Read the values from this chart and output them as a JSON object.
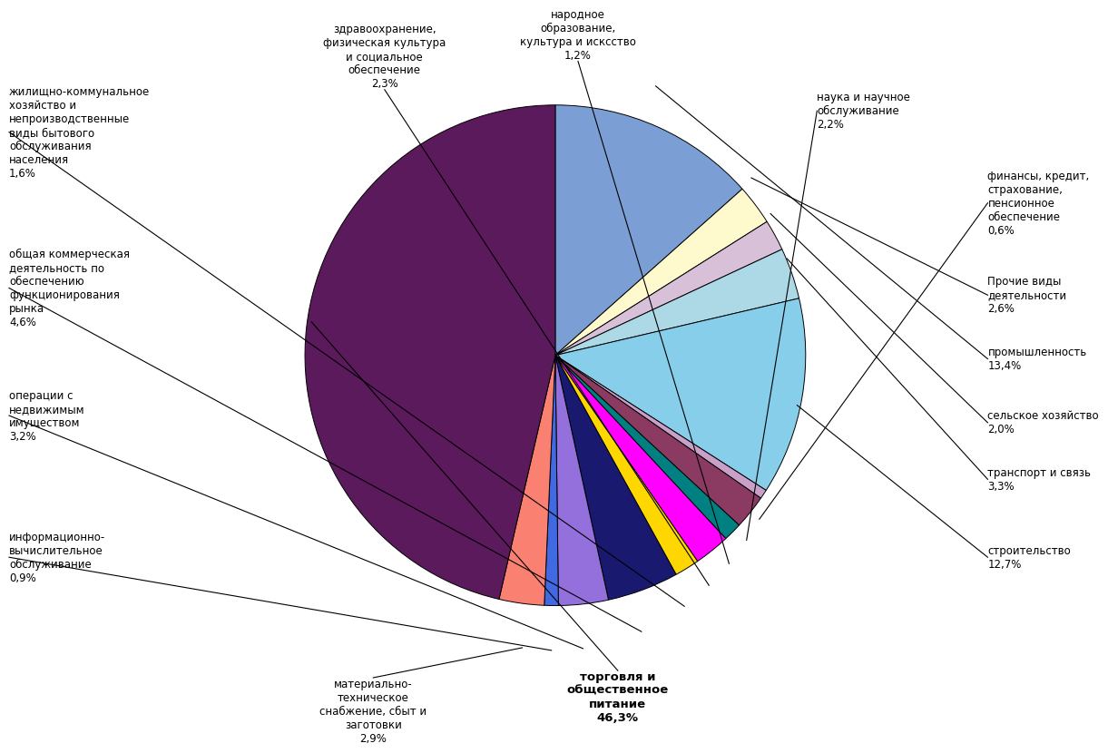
{
  "slices": [
    {
      "label_text": "промышленность\n13,4%",
      "value": 13.4,
      "color": "#7B9FD4",
      "label_side": "right"
    },
    {
      "label_text": "Прочие виды\nдеятельности\n2,6%",
      "value": 2.6,
      "color": "#FFFACD",
      "label_side": "right"
    },
    {
      "label_text": "сельское хозяйство\n2,0%",
      "value": 2.0,
      "color": "#D8C0D8",
      "label_side": "right"
    },
    {
      "label_text": "транспорт и связь\n3,3%",
      "value": 3.3,
      "color": "#ADD8E6",
      "label_side": "right"
    },
    {
      "label_text": "строительство\n12,7%",
      "value": 12.7,
      "color": "#87CEEB",
      "label_side": "right"
    },
    {
      "label_text": "финансы, кредит,\nстрахование,\nпенсионное\nобеспечение\n0,6%",
      "value": 0.6,
      "color": "#C8A0C8",
      "label_side": "right"
    },
    {
      "label_text": "наука и научное\nобслуживание\n2,2%",
      "value": 2.2,
      "color": "#8B3A62",
      "label_side": "right"
    },
    {
      "label_text": "народное\nобразование,\nкультура и исксство\n1,2%",
      "value": 1.2,
      "color": "#008080",
      "label_side": "top"
    },
    {
      "label_text": "здравоохранение,\nфизическая культура\nи социальное\nобеспечение\n2,3%",
      "value": 2.3,
      "color": "#FF00FF",
      "label_side": "top"
    },
    {
      "label_text": "жилищно-коммунальное\nхозяйство и\nнепроизводственные\nвиды бытового\nобслуживания\nнаселения\n1,6%",
      "value": 1.6,
      "color": "#FFD700",
      "label_side": "left"
    },
    {
      "label_text": "общая коммерческая\nдеятельность по\nобеспечению\nфункционирования\nрынка\n4,6%",
      "value": 4.6,
      "color": "#191970",
      "label_side": "left"
    },
    {
      "label_text": "операции с\nнедвижимым\nимуществом\n3,2%",
      "value": 3.2,
      "color": "#9370DB",
      "label_side": "left"
    },
    {
      "label_text": "информационно-\nвычислительное\nобслуживание\n0,9%",
      "value": 0.9,
      "color": "#4169E1",
      "label_side": "left"
    },
    {
      "label_text": "материально-\nтехническое\nснабжение, сбыт и\nзаготовки\n2,9%",
      "value": 2.9,
      "color": "#FA8072",
      "label_side": "bottom"
    },
    {
      "label_text": "торговля и\nобщественное\nпитание\n46,3%",
      "value": 46.3,
      "color": "#5B1A5B",
      "label_side": "bottom",
      "bold": true
    }
  ],
  "background_color": "#FFFFFF",
  "title": ""
}
